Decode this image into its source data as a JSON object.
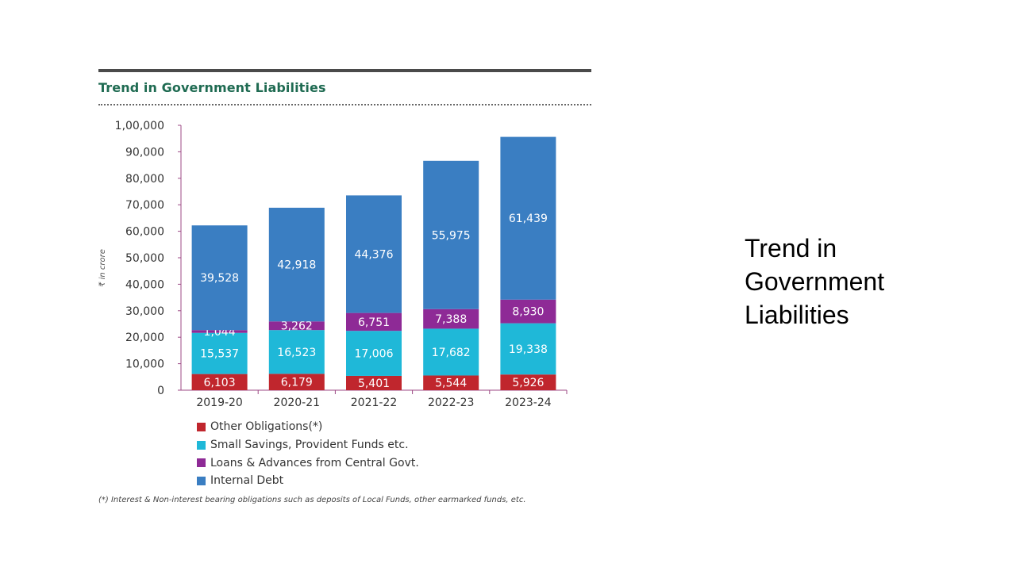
{
  "chart_data": {
    "type": "bar",
    "stacked": true,
    "title": "Trend in Government Liabilities",
    "ylabel": "₹ in crore",
    "xlabel": "",
    "ylim": [
      0,
      100000
    ],
    "yticks": [
      "0",
      "10,000",
      "20,000",
      "30,000",
      "40,000",
      "50,000",
      "60,000",
      "70,000",
      "80,000",
      "90,000",
      "1,00,000"
    ],
    "categories": [
      "2019-20",
      "2020-21",
      "2021-22",
      "2022-23",
      "2023-24"
    ],
    "series": [
      {
        "name": "Other Obligations(*)",
        "color": "#c0262d",
        "values": [
          6103,
          6179,
          5401,
          5544,
          5926
        ],
        "labels": [
          "6,103",
          "6,179",
          "5,401",
          "5,544",
          "5,926"
        ]
      },
      {
        "name": "Small Savings, Provident Funds etc.",
        "color": "#1fb8d8",
        "values": [
          15537,
          16523,
          17006,
          17682,
          19338
        ],
        "labels": [
          "15,537",
          "16,523",
          "17,006",
          "17,682",
          "19,338"
        ]
      },
      {
        "name": "Loans & Advances from Central Govt.",
        "color": "#8e2a96",
        "values": [
          1044,
          3262,
          6751,
          7388,
          8930
        ],
        "labels": [
          "1,044",
          "3,262",
          "6,751",
          "7,388",
          "8,930"
        ]
      },
      {
        "name": "Internal Debt",
        "color": "#3a7ec2",
        "values": [
          39528,
          42918,
          44376,
          55975,
          61439
        ],
        "labels": [
          "39,528",
          "42,918",
          "44,376",
          "55,975",
          "61,439"
        ]
      }
    ],
    "axis_color": "#9c4a86",
    "footnote": "(*) Interest & Non-interest bearing obligations such as deposits of Local Funds, other earmarked funds, etc."
  },
  "slide": {
    "side_title": "Trend in Government Liabilities"
  }
}
